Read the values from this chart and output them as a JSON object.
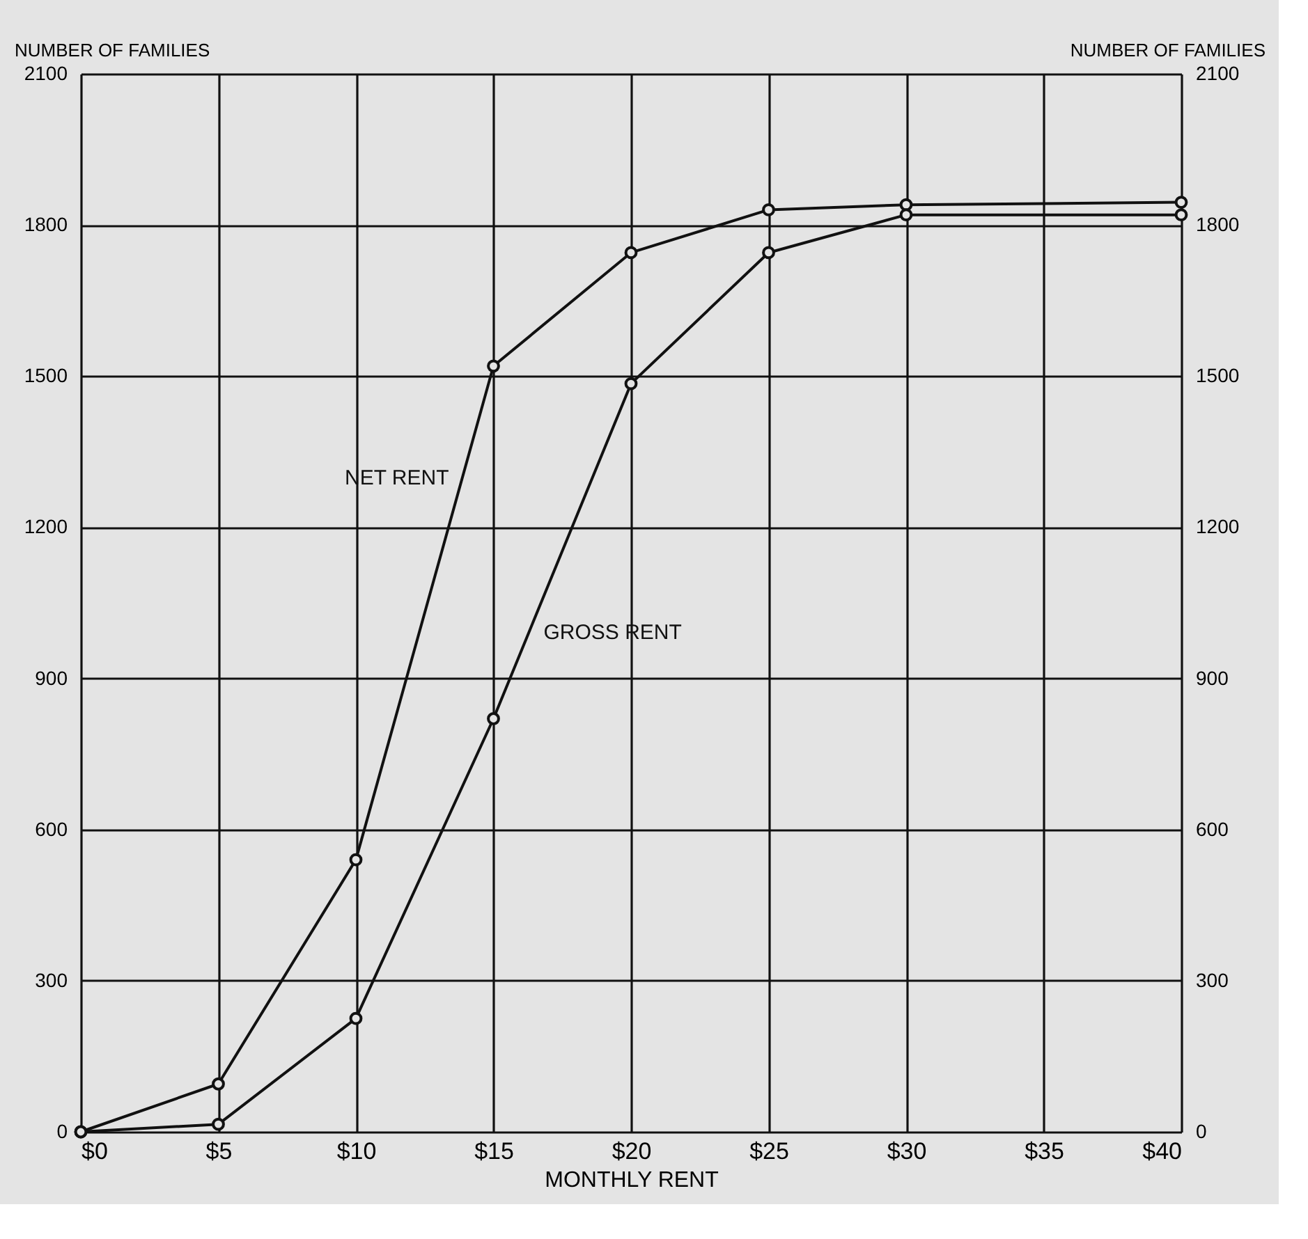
{
  "chart_data": {
    "type": "line",
    "xlabel": "MONTHLY RENT",
    "ylabel": "NUMBER OF FAMILIES",
    "y2label": "NUMBER OF FAMILIES",
    "x": [
      0,
      5,
      10,
      15,
      20,
      25,
      30,
      40
    ],
    "series": [
      {
        "name": "NET RENT",
        "color": "#111111",
        "values": [
          0,
          95,
          540,
          1520,
          1745,
          1830,
          1840,
          1845
        ]
      },
      {
        "name": "GROSS RENT",
        "color": "#111111",
        "values": [
          0,
          15,
          225,
          820,
          1485,
          1745,
          1820,
          1820
        ]
      }
    ],
    "xlim": [
      0,
      40
    ],
    "xticks": [
      {
        "value": 0,
        "label": "$0"
      },
      {
        "value": 5,
        "label": "$5"
      },
      {
        "value": 10,
        "label": "$10"
      },
      {
        "value": 15,
        "label": "$15"
      },
      {
        "value": 20,
        "label": "$20"
      },
      {
        "value": 25,
        "label": "$25"
      },
      {
        "value": 30,
        "label": "$30"
      },
      {
        "value": 35,
        "label": "$35"
      },
      {
        "value": 40,
        "label": "$40"
      }
    ],
    "ylim": [
      0,
      2100
    ],
    "yticks": [
      0,
      300,
      600,
      900,
      1200,
      1500,
      1800,
      2100
    ],
    "y2lim": [
      0,
      2100
    ],
    "y2ticks": [
      0,
      300,
      600,
      900,
      1200,
      1500,
      1800,
      2100
    ],
    "grid": true,
    "legend": false,
    "marker": "circle",
    "line_style": "solid"
  }
}
